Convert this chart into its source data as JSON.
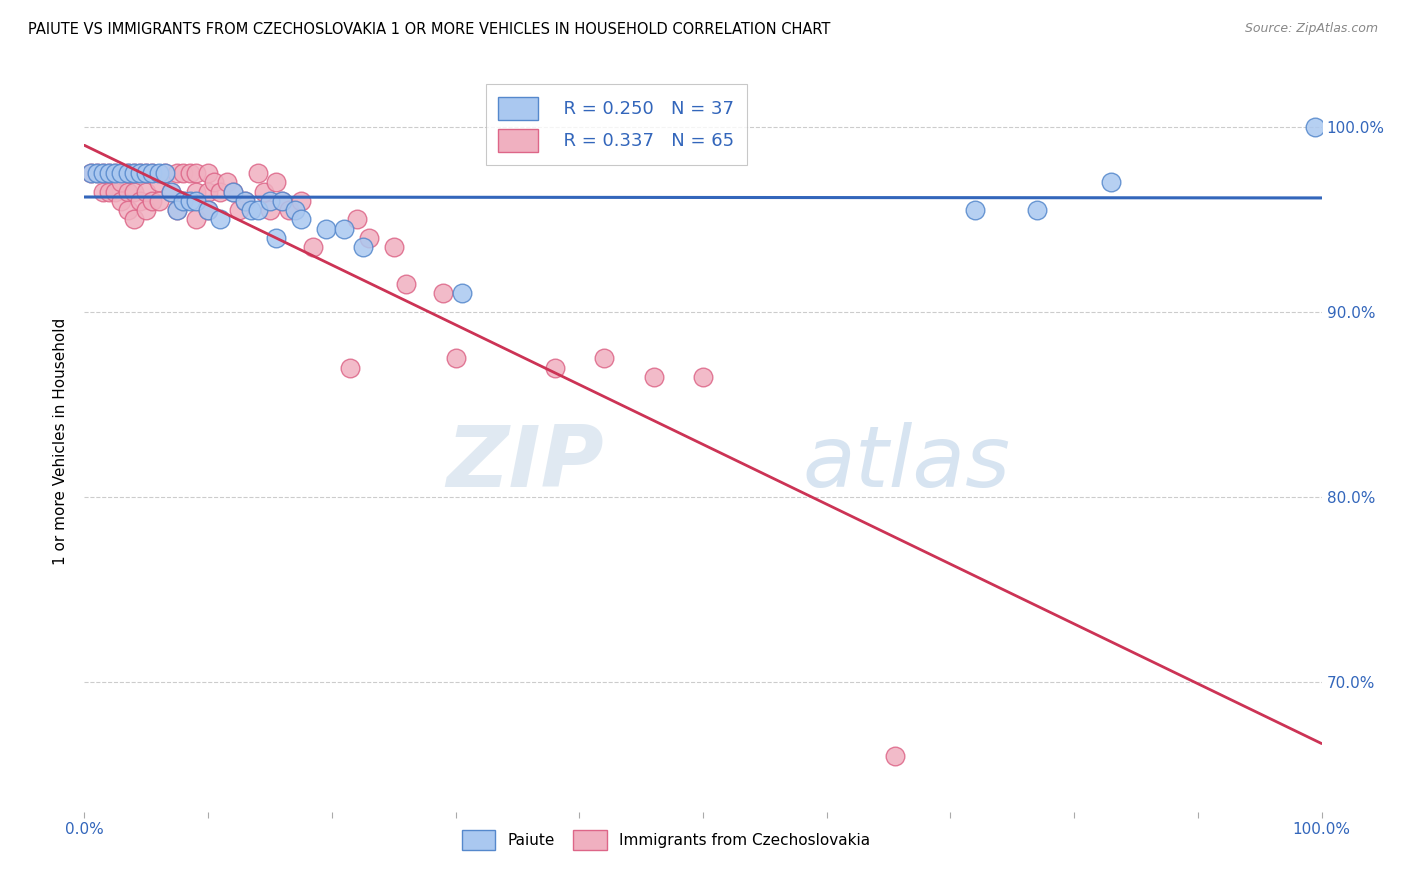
{
  "title": "PAIUTE VS IMMIGRANTS FROM CZECHOSLOVAKIA 1 OR MORE VEHICLES IN HOUSEHOLD CORRELATION CHART",
  "source": "Source: ZipAtlas.com",
  "ylabel": "1 or more Vehicles in Household",
  "xlim": [
    0.0,
    1.0
  ],
  "ylim": [
    0.63,
    1.03
  ],
  "ytick_vals": [
    0.7,
    0.8,
    0.9,
    1.0
  ],
  "ytick_labels": [
    "70.0%",
    "80.0%",
    "90.0%",
    "100.0%"
  ],
  "paiute_color": "#aac8f0",
  "paiute_edge_color": "#5588cc",
  "immigrant_color": "#f0b0c0",
  "immigrant_edge_color": "#dd6688",
  "trendline_paiute_color": "#3366bb",
  "trendline_immigrant_color": "#cc3355",
  "R_paiute": 0.25,
  "N_paiute": 37,
  "R_immigrant": 0.337,
  "N_immigrant": 65,
  "legend_label_paiute": "Paiute",
  "legend_label_immigrant": "Immigrants from Czechoslovakia",
  "watermark_zip": "ZIP",
  "watermark_atlas": "atlas",
  "paiute_x": [
    0.005,
    0.01,
    0.015,
    0.02,
    0.025,
    0.03,
    0.035,
    0.04,
    0.045,
    0.05,
    0.055,
    0.06,
    0.065,
    0.07,
    0.075,
    0.08,
    0.085,
    0.09,
    0.1,
    0.11,
    0.12,
    0.13,
    0.135,
    0.14,
    0.15,
    0.155,
    0.16,
    0.17,
    0.175,
    0.195,
    0.21,
    0.225,
    0.305,
    0.72,
    0.77,
    0.83,
    0.995
  ],
  "paiute_y": [
    0.975,
    0.975,
    0.975,
    0.975,
    0.975,
    0.975,
    0.975,
    0.975,
    0.975,
    0.975,
    0.975,
    0.975,
    0.975,
    0.965,
    0.955,
    0.96,
    0.96,
    0.96,
    0.955,
    0.95,
    0.965,
    0.96,
    0.955,
    0.955,
    0.96,
    0.94,
    0.96,
    0.955,
    0.95,
    0.945,
    0.945,
    0.935,
    0.91,
    0.955,
    0.955,
    0.97,
    1.0
  ],
  "immigrant_x": [
    0.005,
    0.01,
    0.015,
    0.015,
    0.02,
    0.02,
    0.025,
    0.025,
    0.03,
    0.03,
    0.03,
    0.035,
    0.035,
    0.035,
    0.04,
    0.04,
    0.04,
    0.045,
    0.045,
    0.05,
    0.05,
    0.05,
    0.055,
    0.055,
    0.06,
    0.06,
    0.065,
    0.07,
    0.075,
    0.075,
    0.08,
    0.08,
    0.085,
    0.09,
    0.09,
    0.09,
    0.1,
    0.1,
    0.1,
    0.105,
    0.11,
    0.115,
    0.12,
    0.125,
    0.13,
    0.14,
    0.145,
    0.15,
    0.155,
    0.16,
    0.165,
    0.175,
    0.185,
    0.22,
    0.23,
    0.25,
    0.26,
    0.29,
    0.3,
    0.215,
    0.38,
    0.42,
    0.46,
    0.5,
    0.655
  ],
  "immigrant_y": [
    0.975,
    0.975,
    0.975,
    0.965,
    0.975,
    0.965,
    0.975,
    0.965,
    0.975,
    0.97,
    0.96,
    0.975,
    0.965,
    0.955,
    0.975,
    0.965,
    0.95,
    0.975,
    0.96,
    0.975,
    0.965,
    0.955,
    0.975,
    0.96,
    0.97,
    0.96,
    0.975,
    0.965,
    0.975,
    0.955,
    0.975,
    0.96,
    0.975,
    0.975,
    0.965,
    0.95,
    0.975,
    0.965,
    0.955,
    0.97,
    0.965,
    0.97,
    0.965,
    0.955,
    0.96,
    0.975,
    0.965,
    0.955,
    0.97,
    0.96,
    0.955,
    0.96,
    0.935,
    0.95,
    0.94,
    0.935,
    0.915,
    0.91,
    0.875,
    0.87,
    0.87,
    0.875,
    0.865,
    0.865,
    0.66
  ]
}
